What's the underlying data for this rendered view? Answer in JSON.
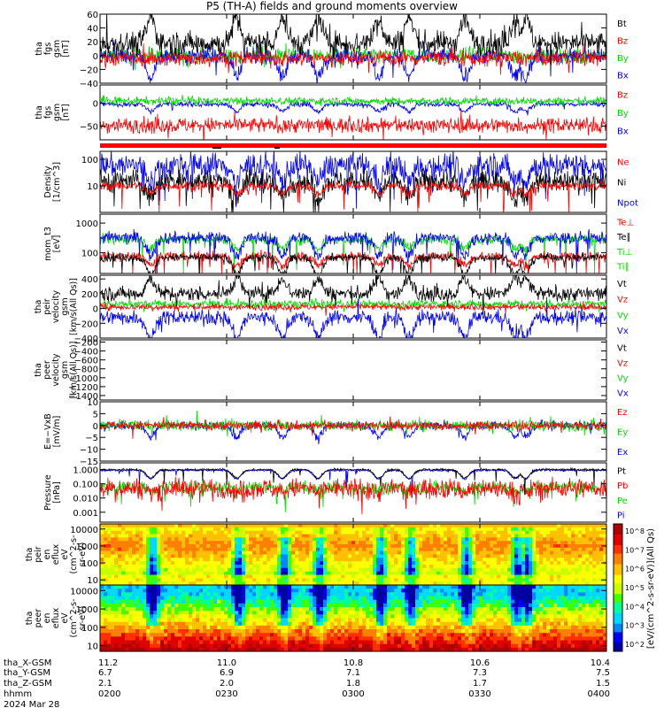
{
  "title": "P5 (TH-A) fields and ground moments overview",
  "colors": {
    "black": "#000000",
    "red": "#ff0000",
    "green": "#00dd00",
    "blue": "#0000ff"
  },
  "chart_data": [
    {
      "type": "line",
      "ylabel_lines": [
        "tha",
        "fgs",
        "gsm",
        "[nT]"
      ],
      "ylim": [
        -40,
        60
      ],
      "ticks": [
        60,
        40,
        20,
        0,
        -20,
        -40
      ],
      "tick_labels": [
        "60",
        "40",
        "20",
        "0",
        "−20",
        "−40"
      ],
      "legend": [
        "Bt",
        "Bz",
        "By",
        "Bx"
      ],
      "legend_colors": [
        "black",
        "red",
        "green",
        "blue"
      ],
      "series": [
        {
          "color": "green",
          "base": 0,
          "noise": 8,
          "spikes": 3
        },
        {
          "color": "blue",
          "base": 0,
          "noise": 8,
          "spikes": 3
        },
        {
          "color": "red",
          "base": -4,
          "noise": 8,
          "spikes": 3
        },
        {
          "color": "black",
          "base": 18,
          "noise": 12,
          "spikes": 3
        }
      ]
    },
    {
      "type": "line",
      "ylabel_lines": [
        "tha",
        "fgs",
        "gsm",
        "[nT]"
      ],
      "ylim": [
        -80,
        40
      ],
      "ticks": [
        0,
        -50
      ],
      "tick_labels": [
        "0",
        "−50"
      ],
      "legend": [
        "Bz",
        "By",
        "Bx"
      ],
      "legend_colors": [
        "red",
        "green",
        "blue"
      ],
      "series": [
        {
          "color": "blue",
          "base": -2,
          "noise": 4,
          "spikes": 2
        },
        {
          "color": "green",
          "base": 5,
          "noise": 6,
          "spikes": 2
        },
        {
          "color": "red",
          "base": -48,
          "noise": 12,
          "spikes": 3
        }
      ]
    },
    {
      "type": "bar_strip"
    },
    {
      "type": "line",
      "ylabel_lines": [
        "Density",
        "[1/cm^3]"
      ],
      "ylim": [
        1,
        200
      ],
      "log": true,
      "ticks": [
        100,
        10
      ],
      "tick_labels": [
        "100",
        "10"
      ],
      "legend": [
        "Ne",
        "Ni",
        "Npot"
      ],
      "legend_colors": [
        "red",
        "black",
        "blue"
      ],
      "series": [
        {
          "color": "blue",
          "base": 60,
          "noise": 0.35,
          "spikes": 3
        },
        {
          "color": "black",
          "base": 15,
          "noise": 0.3,
          "spikes": 4
        },
        {
          "color": "red",
          "base": 10,
          "noise": 0.12,
          "spikes": 2
        }
      ]
    },
    {
      "type": "line",
      "ylabel_lines": [
        "mom_t3",
        "[eV]"
      ],
      "ylim": [
        20,
        2000
      ],
      "log": true,
      "ticks": [
        1000,
        100
      ],
      "tick_labels": [
        "1000",
        "100"
      ],
      "legend": [
        "Te⊥",
        "Te∥",
        "Ti⊥",
        "Ti∥"
      ],
      "legend_colors": [
        "red",
        "black",
        "green",
        "green"
      ],
      "series": [
        {
          "color": "green",
          "base": 280,
          "noise": 0.12,
          "spikes": 2
        },
        {
          "color": "blue",
          "base": 320,
          "noise": 0.15,
          "spikes": 2
        },
        {
          "color": "red",
          "base": 75,
          "noise": 0.12,
          "spikes": 3
        },
        {
          "color": "black",
          "base": 70,
          "noise": 0.1,
          "spikes": 3
        }
      ]
    },
    {
      "type": "line",
      "ylabel_lines": [
        "tha",
        "peir",
        "velocity",
        "gsm",
        "[km/s(All Qs)]"
      ],
      "ylim": [
        -400,
        450
      ],
      "ticks": [
        400,
        200,
        0,
        -200,
        -400
      ],
      "tick_labels": [
        "400",
        "200",
        "0",
        "−200",
        "−400"
      ],
      "legend": [
        "Vt",
        "Vz",
        "Vy",
        "Vx"
      ],
      "legend_colors": [
        "black",
        "red",
        "green",
        "blue"
      ],
      "series": [
        {
          "color": "green",
          "base": 60,
          "noise": 40,
          "spikes": 3
        },
        {
          "color": "red",
          "base": 20,
          "noise": 30,
          "spikes": 3
        },
        {
          "color": "blue",
          "base": -120,
          "noise": 70,
          "spikes": 4
        },
        {
          "color": "black",
          "base": 200,
          "noise": 70,
          "spikes": 3
        }
      ]
    },
    {
      "type": "empty",
      "ylabel_lines": [
        "tha",
        "peer",
        "velocity",
        "gsm",
        "[km/s(All Qs)]"
      ],
      "ylim": [
        -1500,
        -150
      ],
      "ticks": [
        -200,
        -400,
        -600,
        -800,
        -1000,
        -1200,
        -1400
      ],
      "tick_labels": [
        "−200",
        "−400",
        "−600",
        "−800",
        "−1000",
        "−1200",
        "−1400"
      ],
      "legend": [
        "Vt",
        "Vz",
        "Vy",
        "Vx"
      ],
      "legend_colors": [
        "black",
        "red",
        "green",
        "blue"
      ],
      "series": []
    },
    {
      "type": "line",
      "ylabel_lines": [
        "E=−VxB",
        "[mV/m]"
      ],
      "ylim": [
        -15,
        10
      ],
      "ticks": [
        10,
        5,
        0,
        -5,
        -10,
        -15
      ],
      "tick_labels": [
        "10",
        "5",
        "0",
        "−5",
        "−10",
        "−15"
      ],
      "legend": [
        "Ez",
        "Ey",
        "Ex"
      ],
      "legend_colors": [
        "red",
        "green",
        "blue"
      ],
      "series": [
        {
          "color": "blue",
          "base": 0,
          "noise": 1.2,
          "spikes": 3
        },
        {
          "color": "green",
          "base": 0,
          "noise": 1.6,
          "spikes": 4
        },
        {
          "color": "red",
          "base": 0,
          "noise": 1.4,
          "spikes": 3
        }
      ]
    },
    {
      "type": "line",
      "ylabel_lines": [
        "Pressure",
        "[nPa]"
      ],
      "ylim": [
        0.0002,
        3
      ],
      "log": true,
      "ticks": [
        1,
        0.1,
        0.01,
        0.001
      ],
      "tick_labels": [
        "1.000",
        "0.100",
        "0.010",
        "0.001"
      ],
      "legend": [
        "Pt",
        "Pb",
        "Pe",
        "Pi"
      ],
      "legend_colors": [
        "black",
        "red",
        "green",
        "blue"
      ],
      "series": [
        {
          "color": "green",
          "base": 0.06,
          "noise": 0.3,
          "spikes": 3
        },
        {
          "color": "red",
          "base": 0.05,
          "noise": 0.5,
          "spikes": 5
        },
        {
          "color": "blue",
          "base": 0.9,
          "noise": 0.05,
          "spikes": 1
        },
        {
          "color": "black",
          "base": 1.0,
          "noise": 0.06,
          "spikes": 2
        }
      ]
    },
    {
      "type": "heatmap",
      "ylabel_lines": [
        "tha",
        "peir",
        "en",
        "eflux",
        "eV",
        "(cm^2-s-",
        "sr-eV)"
      ],
      "ylim": [
        5,
        20000
      ],
      "log": true,
      "ticks": [
        10000,
        1000,
        100,
        10
      ],
      "tick_labels": [
        "10000",
        "1000",
        "100",
        "10"
      ],
      "profile": "ion"
    },
    {
      "type": "heatmap",
      "ylabel_lines": [
        "tha",
        "peer",
        "en",
        "eflux",
        "eV",
        "(cm^2-s-",
        "sr-eV)"
      ],
      "ylim": [
        5,
        20000
      ],
      "log": true,
      "ticks": [
        10000,
        1000,
        100,
        10
      ],
      "tick_labels": [
        "10000",
        "1000",
        "100",
        "10"
      ],
      "profile": "electron"
    }
  ],
  "colorbar": {
    "ticks": [
      "10^8",
      "10^7",
      "10^6",
      "10^5",
      "10^4",
      "10^3",
      "10^2"
    ],
    "label": "[eV/(cm^2-s-sr-eV)](All Qs)",
    "ticks2": [
      "10^8",
      "10^7",
      "10^6",
      "10^5",
      "10^4",
      "10^3",
      "10^2"
    ]
  },
  "xaxis": {
    "row_labels": [
      "tha_X-GSM",
      "tha_Y-GSM",
      "tha_Z-GSM",
      "hhmm",
      "2024 Mar 28"
    ],
    "columns": [
      {
        "vals": [
          "11.2",
          "6.7",
          "2.1",
          "0200"
        ]
      },
      {
        "vals": [
          "11.0",
          "6.9",
          "2.0",
          "0230"
        ]
      },
      {
        "vals": [
          "10.8",
          "7.1",
          "1.8",
          "0300"
        ]
      },
      {
        "vals": [
          "10.6",
          "7.3",
          "1.7",
          "0330"
        ]
      },
      {
        "vals": [
          "10.4",
          "7.5",
          "1.5",
          "0400"
        ]
      }
    ]
  }
}
